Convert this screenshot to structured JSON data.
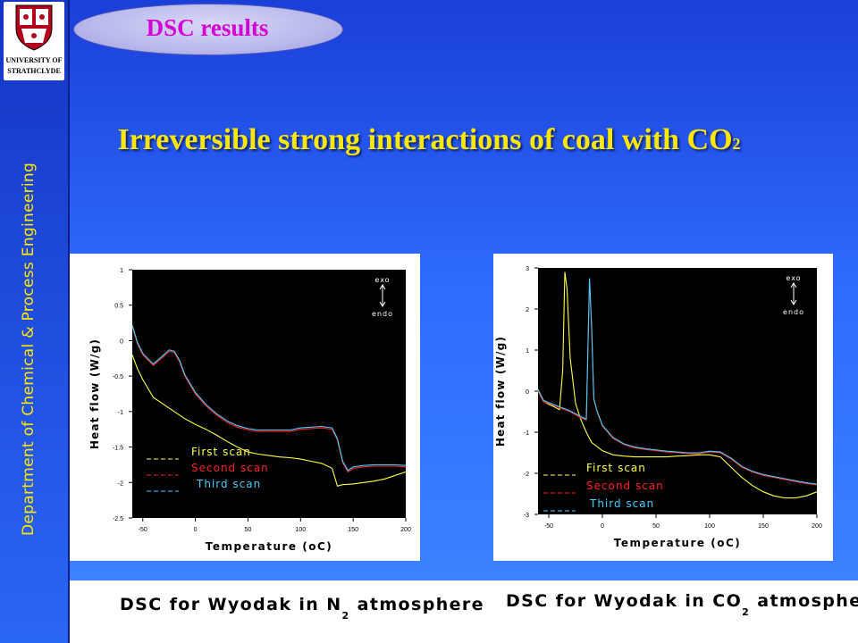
{
  "slide": {
    "title": "DSC results",
    "subtitle_main": "Irreversible strong interactions of coal with CO",
    "subtitle_sub": "2",
    "side_text": "Department of Chemical & Process Engineering",
    "logo_text_line1": "UNIVERSITY OF",
    "logo_text_line2": "STRATHCLYDE"
  },
  "colors": {
    "first_scan": "#ffff40",
    "second_scan": "#ff2020",
    "third_scan": "#40d0ff",
    "plot_bg": "#000000",
    "title_magenta": "#d500d5",
    "subtitle_yellow": "#ffe800"
  },
  "captions": {
    "left_main": "DSC for Wyodak in N",
    "left_sub": "2",
    "left_end": " atmosphere",
    "right_main": "DSC for Wyodak in CO",
    "right_sub": "2",
    "right_end": " atmosphere"
  },
  "chart_data": [
    {
      "type": "line",
      "title": "",
      "xlabel": "Temperature (oC)",
      "ylabel": "Heat flow   (W/g)",
      "xlim": [
        -60,
        200
      ],
      "ylim": [
        -2.5,
        1
      ],
      "xticks": [
        -50,
        0,
        50,
        100,
        150,
        200
      ],
      "yticks": [
        1,
        0.5,
        0,
        -0.5,
        -1,
        -1.5,
        -2,
        -2.5
      ],
      "annotations": [
        "exo",
        "endo"
      ],
      "legend_position": "bottom-left",
      "series": [
        {
          "name": "First scan",
          "color": "#ffff40",
          "x": [
            -60,
            -55,
            -50,
            -40,
            -30,
            -20,
            -10,
            0,
            10,
            20,
            30,
            40,
            50,
            60,
            70,
            80,
            90,
            100,
            110,
            120,
            130,
            135,
            140,
            150,
            160,
            170,
            180,
            190,
            200
          ],
          "y": [
            -0.2,
            -0.4,
            -0.55,
            -0.8,
            -0.9,
            -1.0,
            -1.1,
            -1.18,
            -1.25,
            -1.33,
            -1.42,
            -1.5,
            -1.57,
            -1.6,
            -1.62,
            -1.64,
            -1.65,
            -1.67,
            -1.7,
            -1.73,
            -1.8,
            -2.05,
            -2.03,
            -2.02,
            -2.0,
            -1.98,
            -1.95,
            -1.9,
            -1.85
          ]
        },
        {
          "name": "Second scan",
          "color": "#ff2020",
          "x": [
            -60,
            -55,
            -50,
            -40,
            -30,
            -25,
            -20,
            -15,
            -10,
            0,
            10,
            20,
            30,
            40,
            50,
            60,
            70,
            80,
            90,
            100,
            110,
            120,
            130,
            135,
            140,
            145,
            150,
            160,
            170,
            180,
            190,
            200
          ],
          "y": [
            0.2,
            -0.05,
            -0.2,
            -0.35,
            -0.22,
            -0.15,
            -0.17,
            -0.3,
            -0.5,
            -0.75,
            -0.92,
            -1.05,
            -1.15,
            -1.22,
            -1.26,
            -1.28,
            -1.28,
            -1.28,
            -1.28,
            -1.25,
            -1.24,
            -1.23,
            -1.25,
            -1.4,
            -1.72,
            -1.85,
            -1.8,
            -1.78,
            -1.77,
            -1.77,
            -1.77,
            -1.78
          ]
        },
        {
          "name": "Third scan",
          "color": "#40d0ff",
          "x": [
            -60,
            -55,
            -50,
            -40,
            -30,
            -25,
            -20,
            -15,
            -10,
            0,
            10,
            20,
            30,
            40,
            50,
            60,
            70,
            80,
            90,
            100,
            110,
            120,
            130,
            135,
            140,
            145,
            150,
            160,
            170,
            180,
            190,
            200
          ],
          "y": [
            0.22,
            -0.03,
            -0.18,
            -0.33,
            -0.2,
            -0.13,
            -0.15,
            -0.28,
            -0.48,
            -0.73,
            -0.9,
            -1.03,
            -1.13,
            -1.2,
            -1.24,
            -1.26,
            -1.26,
            -1.26,
            -1.26,
            -1.23,
            -1.22,
            -1.21,
            -1.23,
            -1.38,
            -1.7,
            -1.83,
            -1.78,
            -1.76,
            -1.75,
            -1.75,
            -1.75,
            -1.76
          ]
        }
      ]
    },
    {
      "type": "line",
      "title": "",
      "xlabel": "Temperature (oC)",
      "ylabel": "Heat flow   (W/g)",
      "xlim": [
        -60,
        200
      ],
      "ylim": [
        -3,
        3
      ],
      "xticks": [
        -50,
        0,
        50,
        100,
        150,
        200
      ],
      "yticks": [
        3,
        2,
        1,
        0,
        -1,
        -2,
        -3
      ],
      "annotations": [
        "exo",
        "endo"
      ],
      "legend_position": "bottom-left",
      "series": [
        {
          "name": "First scan",
          "color": "#ffff40",
          "x": [
            -60,
            -55,
            -50,
            -45,
            -40,
            -37,
            -35,
            -33,
            -30,
            -25,
            -20,
            -15,
            -10,
            0,
            10,
            20,
            30,
            40,
            50,
            60,
            70,
            80,
            90,
            100,
            110,
            120,
            130,
            140,
            150,
            160,
            170,
            180,
            190,
            200
          ],
          "y": [
            0.0,
            -0.25,
            -0.32,
            -0.38,
            -0.45,
            0.5,
            2.9,
            2.5,
            0.8,
            -0.3,
            -0.7,
            -1.0,
            -1.25,
            -1.45,
            -1.55,
            -1.58,
            -1.6,
            -1.6,
            -1.6,
            -1.6,
            -1.58,
            -1.57,
            -1.55,
            -1.55,
            -1.6,
            -1.85,
            -2.1,
            -2.3,
            -2.45,
            -2.55,
            -2.6,
            -2.6,
            -2.55,
            -2.45
          ]
        },
        {
          "name": "Second scan",
          "color": "#ff2020",
          "x": [
            -60,
            -55,
            -50,
            -40,
            -30,
            -20,
            -15,
            -12,
            -10,
            -8,
            -5,
            0,
            10,
            20,
            30,
            40,
            50,
            60,
            70,
            80,
            90,
            100,
            110,
            120,
            130,
            140,
            150,
            160,
            170,
            180,
            190,
            200
          ],
          "y": [
            0.0,
            -0.25,
            -0.3,
            -0.4,
            -0.5,
            -0.65,
            -0.7,
            2.7,
            1.5,
            -0.2,
            -0.5,
            -0.85,
            -1.15,
            -1.3,
            -1.38,
            -1.42,
            -1.45,
            -1.48,
            -1.5,
            -1.52,
            -1.52,
            -1.48,
            -1.5,
            -1.65,
            -1.85,
            -1.97,
            -2.05,
            -2.1,
            -2.15,
            -2.2,
            -2.25,
            -2.28
          ]
        },
        {
          "name": "Third scan",
          "color": "#40d0ff",
          "x": [
            -60,
            -55,
            -50,
            -40,
            -30,
            -20,
            -15,
            -12,
            -10,
            -8,
            -5,
            0,
            10,
            20,
            30,
            40,
            50,
            60,
            70,
            80,
            90,
            100,
            110,
            120,
            130,
            140,
            150,
            160,
            170,
            180,
            190,
            200
          ],
          "y": [
            0.05,
            -0.22,
            -0.28,
            -0.38,
            -0.48,
            -0.62,
            -0.68,
            2.75,
            1.55,
            -0.18,
            -0.48,
            -0.83,
            -1.13,
            -1.28,
            -1.36,
            -1.4,
            -1.43,
            -1.46,
            -1.48,
            -1.5,
            -1.5,
            -1.46,
            -1.48,
            -1.63,
            -1.83,
            -1.95,
            -2.03,
            -2.08,
            -2.13,
            -2.18,
            -2.23,
            -2.26
          ]
        }
      ]
    }
  ]
}
